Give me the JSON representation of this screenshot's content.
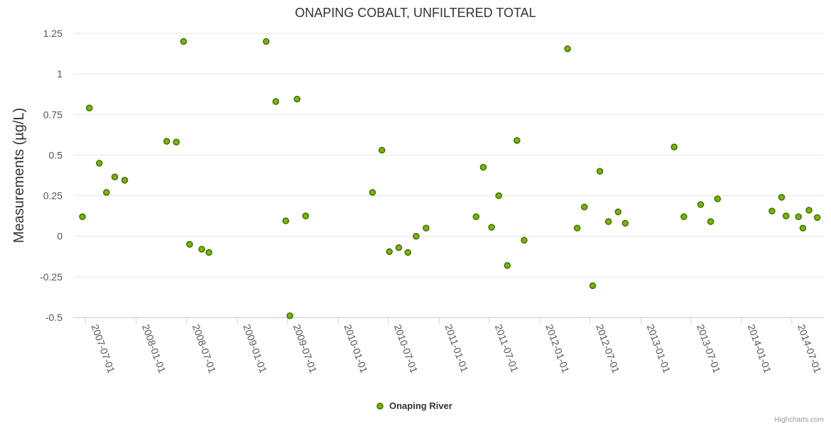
{
  "chart_data": {
    "type": "scatter",
    "title": "ONAPING COBALT, UNFILTERED TOTAL",
    "ylabel": "Measurements (µg/L)",
    "xlabel": "",
    "ylim": [
      -0.5,
      1.25
    ],
    "yticks": [
      {
        "value": 1.25,
        "label": "1.25"
      },
      {
        "value": 1.0,
        "label": "1"
      },
      {
        "value": 0.75,
        "label": "0.75"
      },
      {
        "value": 0.5,
        "label": "0.5"
      },
      {
        "value": 0.25,
        "label": "0.25"
      },
      {
        "value": 0.0,
        "label": "0"
      },
      {
        "value": -0.25,
        "label": "-0.25"
      },
      {
        "value": -0.5,
        "label": "-0.5"
      }
    ],
    "xlim": [
      "2007-05-20",
      "2014-10-25"
    ],
    "xticks": [
      "2007-07-01",
      "2008-01-01",
      "2008-07-01",
      "2009-01-01",
      "2009-07-01",
      "2010-01-01",
      "2010-07-01",
      "2011-01-01",
      "2011-07-01",
      "2012-01-01",
      "2012-07-01",
      "2013-01-01",
      "2013-07-01",
      "2014-01-01",
      "2014-07-01"
    ],
    "grid": true,
    "legend_position": "bottom-center",
    "series": [
      {
        "name": "Onaping River",
        "color": "#7cb400",
        "border_color": "#3f6f00",
        "points": [
          {
            "x": "2007-06-20",
            "y": 0.12
          },
          {
            "x": "2007-07-15",
            "y": 0.79
          },
          {
            "x": "2007-08-20",
            "y": 0.45
          },
          {
            "x": "2007-09-15",
            "y": 0.27
          },
          {
            "x": "2007-10-15",
            "y": 0.365
          },
          {
            "x": "2007-11-20",
            "y": 0.345
          },
          {
            "x": "2008-04-20",
            "y": 0.585
          },
          {
            "x": "2008-05-25",
            "y": 0.58
          },
          {
            "x": "2008-06-20",
            "y": 1.2
          },
          {
            "x": "2008-07-12",
            "y": -0.05
          },
          {
            "x": "2008-08-25",
            "y": -0.08
          },
          {
            "x": "2008-09-20",
            "y": -0.1
          },
          {
            "x": "2009-04-15",
            "y": 1.2
          },
          {
            "x": "2009-05-20",
            "y": 0.83
          },
          {
            "x": "2009-06-25",
            "y": 0.095
          },
          {
            "x": "2009-07-10",
            "y": -0.49
          },
          {
            "x": "2009-08-05",
            "y": 0.845
          },
          {
            "x": "2009-09-05",
            "y": 0.125
          },
          {
            "x": "2010-05-05",
            "y": 0.27
          },
          {
            "x": "2010-06-08",
            "y": 0.53
          },
          {
            "x": "2010-07-05",
            "y": -0.095
          },
          {
            "x": "2010-08-08",
            "y": -0.07
          },
          {
            "x": "2010-09-10",
            "y": -0.1
          },
          {
            "x": "2010-10-10",
            "y": 0.0
          },
          {
            "x": "2010-11-15",
            "y": 0.05
          },
          {
            "x": "2011-05-15",
            "y": 0.12
          },
          {
            "x": "2011-06-10",
            "y": 0.425
          },
          {
            "x": "2011-07-10",
            "y": 0.055
          },
          {
            "x": "2011-08-05",
            "y": 0.25
          },
          {
            "x": "2011-09-05",
            "y": -0.18
          },
          {
            "x": "2011-10-10",
            "y": 0.59
          },
          {
            "x": "2011-11-05",
            "y": -0.025
          },
          {
            "x": "2012-04-10",
            "y": 1.155
          },
          {
            "x": "2012-05-15",
            "y": 0.05
          },
          {
            "x": "2012-06-10",
            "y": 0.18
          },
          {
            "x": "2012-07-10",
            "y": -0.305
          },
          {
            "x": "2012-08-05",
            "y": 0.4
          },
          {
            "x": "2012-09-05",
            "y": 0.09
          },
          {
            "x": "2012-10-10",
            "y": 0.15
          },
          {
            "x": "2012-11-05",
            "y": 0.08
          },
          {
            "x": "2013-05-01",
            "y": 0.55
          },
          {
            "x": "2013-06-05",
            "y": 0.12
          },
          {
            "x": "2013-08-05",
            "y": 0.195
          },
          {
            "x": "2013-09-10",
            "y": 0.09
          },
          {
            "x": "2013-10-05",
            "y": 0.23
          },
          {
            "x": "2014-04-20",
            "y": 0.155
          },
          {
            "x": "2014-05-25",
            "y": 0.24
          },
          {
            "x": "2014-06-10",
            "y": 0.125
          },
          {
            "x": "2014-07-25",
            "y": 0.12
          },
          {
            "x": "2014-08-10",
            "y": 0.05
          },
          {
            "x": "2014-09-01",
            "y": 0.16
          },
          {
            "x": "2014-10-01",
            "y": 0.115
          }
        ]
      }
    ]
  },
  "credits": "Highcharts.com"
}
